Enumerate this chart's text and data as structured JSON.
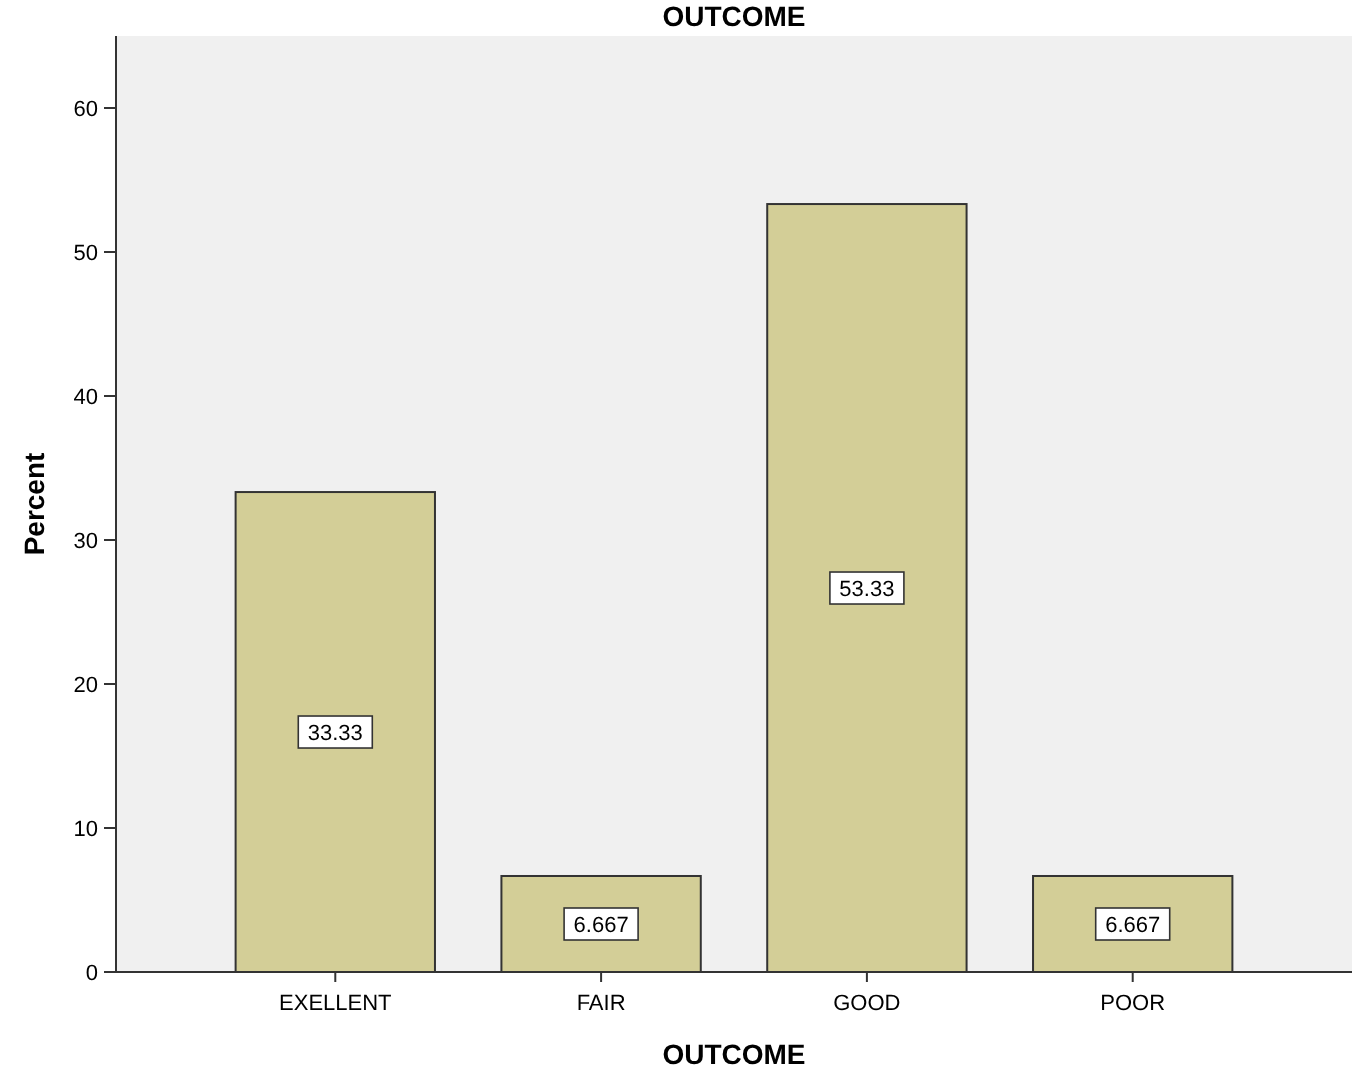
{
  "chart_data": {
    "type": "bar",
    "title": "OUTCOME",
    "xlabel": "OUTCOME",
    "ylabel": "Percent",
    "categories": [
      "EXELLENT",
      "FAIR",
      "GOOD",
      "POOR"
    ],
    "values": [
      33.33,
      6.667,
      53.33,
      6.667
    ],
    "color": "#d3ce97",
    "ylim": [
      0,
      65
    ],
    "yticks": [
      0,
      10,
      20,
      30,
      40,
      50,
      60
    ],
    "grid": false,
    "data_labels": true
  }
}
